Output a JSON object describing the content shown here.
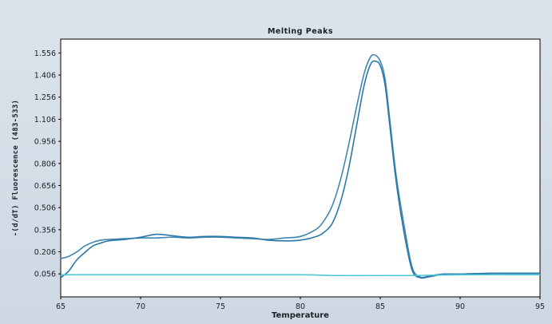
{
  "chart_data": {
    "type": "line",
    "title": "Melting Peaks",
    "xlabel": "Temperature",
    "ylabel": "-(d/dT) Fluorescence (483-533)",
    "xlim": [
      65,
      95
    ],
    "ylim": [
      -0.1,
      1.65
    ],
    "xticks": [
      65,
      70,
      75,
      80,
      85,
      90,
      95
    ],
    "yticks": [
      0.056,
      0.206,
      0.356,
      0.506,
      0.656,
      0.806,
      0.956,
      1.106,
      1.256,
      1.406,
      1.556
    ],
    "xtick_labels": [
      "65",
      "70",
      "75",
      "80",
      "85",
      "90",
      "95"
    ],
    "ytick_labels": [
      "0.056",
      "0.206",
      "0.356",
      "0.506",
      "0.656",
      "0.806",
      "0.956",
      "1.106",
      "1.256",
      "1.406",
      "1.556"
    ],
    "grid": false,
    "colors": {
      "plot_background": "#ffffff",
      "frame": "#000000",
      "outer_background": "#d3dde7"
    },
    "series": [
      {
        "color": "#3f86b3",
        "x": [
          65,
          65.5,
          66,
          66.5,
          67,
          67.5,
          68,
          69,
          70,
          71,
          72,
          73,
          74,
          75,
          76,
          77,
          78,
          79,
          80,
          81,
          81.5,
          82,
          82.5,
          83,
          83.5,
          84,
          84.4,
          84.7,
          85,
          85.3,
          85.6,
          86,
          86.5,
          87,
          87.5,
          88,
          88.5,
          89,
          90,
          92,
          95
        ],
        "y": [
          0.16,
          0.175,
          0.205,
          0.245,
          0.27,
          0.285,
          0.29,
          0.295,
          0.3,
          0.3,
          0.305,
          0.3,
          0.305,
          0.305,
          0.3,
          0.295,
          0.29,
          0.3,
          0.31,
          0.36,
          0.42,
          0.52,
          0.69,
          0.92,
          1.18,
          1.42,
          1.53,
          1.54,
          1.5,
          1.38,
          1.1,
          0.72,
          0.38,
          0.1,
          0.035,
          0.04,
          0.05,
          0.055,
          0.055,
          0.06,
          0.06
        ]
      },
      {
        "color": "#2b78a8",
        "x": [
          65,
          65.5,
          66,
          66.5,
          67,
          67.5,
          68,
          69,
          70,
          71,
          72,
          73,
          74,
          75,
          76,
          77,
          78,
          79,
          80,
          81,
          81.5,
          82,
          82.5,
          83,
          83.5,
          84,
          84.4,
          84.7,
          85,
          85.3,
          85.6,
          86,
          86.5,
          87,
          87.5,
          88,
          88.5,
          89,
          90,
          92,
          95
        ],
        "y": [
          0.03,
          0.075,
          0.15,
          0.2,
          0.245,
          0.265,
          0.28,
          0.29,
          0.305,
          0.325,
          0.315,
          0.305,
          0.31,
          0.31,
          0.305,
          0.3,
          0.285,
          0.28,
          0.285,
          0.31,
          0.34,
          0.4,
          0.54,
          0.76,
          1.05,
          1.34,
          1.48,
          1.5,
          1.47,
          1.34,
          1.06,
          0.68,
          0.33,
          0.08,
          0.03,
          0.035,
          0.045,
          0.055,
          0.055,
          0.06,
          0.06
        ]
      },
      {
        "color": "#4fc6d6",
        "x": [
          65,
          70,
          75,
          80,
          82,
          85,
          87,
          90,
          95
        ],
        "y": [
          0.05,
          0.05,
          0.05,
          0.05,
          0.045,
          0.045,
          0.045,
          0.05,
          0.05
        ]
      }
    ]
  }
}
